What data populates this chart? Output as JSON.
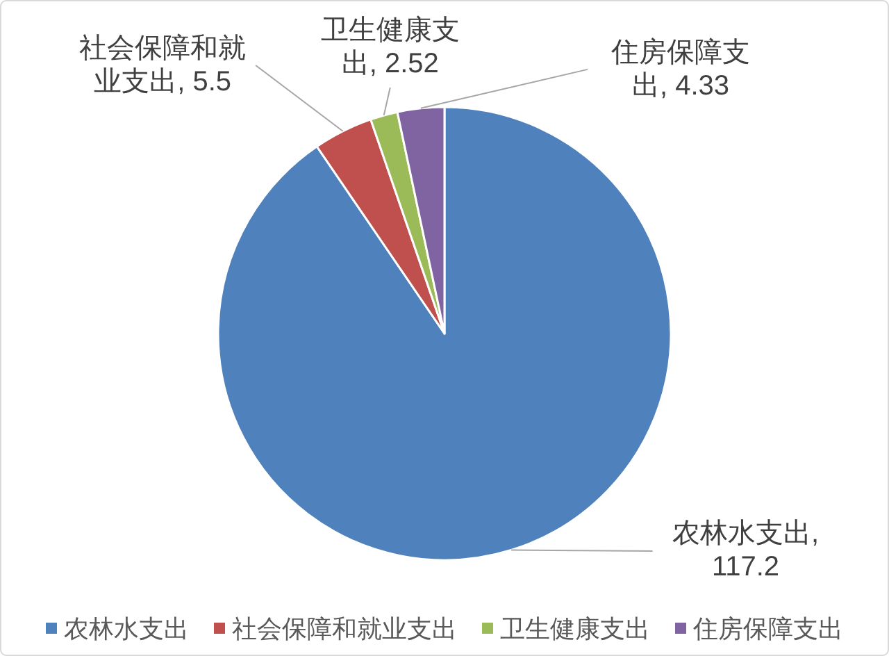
{
  "chart_data": {
    "type": "pie",
    "categories": [
      "农林水支出",
      "社会保障和就业支出",
      "卫生健康支出",
      "住房保障支出"
    ],
    "values": [
      117.2,
      5.5,
      2.52,
      4.33
    ],
    "value_labels": [
      "农林水支出, 117.2",
      "社会保障和就业支出, 5.5",
      "卫生健康支出, 2.52",
      "住房保障支出, 4.33"
    ],
    "colors": [
      "#4f81bd",
      "#c0504d",
      "#9bbb59",
      "#8064a2"
    ],
    "legend": "bottom"
  }
}
